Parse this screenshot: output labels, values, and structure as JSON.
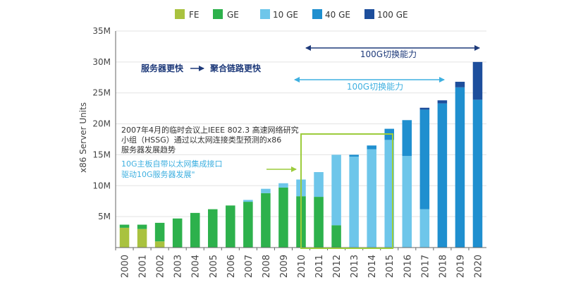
{
  "colors": {
    "FE": "#a9c23f",
    "GE": "#2db14c",
    "10 GE": "#6ec6ea",
    "40 GE": "#1f8fcf",
    "100 GE": "#1d4e9c",
    "axis": "#666666",
    "grid": "#e3e3e3",
    "annotation_navy": "#1e3a7a",
    "annotation_cyan": "#3fb0e0",
    "highlight_box": "#9ccc3c",
    "note_text": "#333333"
  },
  "chart_data": {
    "type": "bar",
    "stacked": true,
    "title": "",
    "xlabel": "",
    "ylabel": "x86 Server Units",
    "ylim": [
      0,
      35
    ],
    "yticks": [
      5,
      10,
      15,
      20,
      25,
      30,
      35
    ],
    "ytick_labels": [
      "5M",
      "10M",
      "15M",
      "20M",
      "25M",
      "30M",
      "35M"
    ],
    "grid": "horizontal",
    "legend_position": "top-center",
    "categories": [
      "2000",
      "2001",
      "2002",
      "2003",
      "2004",
      "2005",
      "2006",
      "2007",
      "2008",
      "2009",
      "2010",
      "2011",
      "2012",
      "2013",
      "2014",
      "2015",
      "2016",
      "2017",
      "2018",
      "2019",
      "2020"
    ],
    "series": [
      {
        "name": "FE",
        "values": [
          3.2,
          3.0,
          1.0,
          0,
          0,
          0,
          0,
          0,
          0,
          0,
          0,
          0,
          0,
          0,
          0,
          0,
          0,
          0,
          0,
          0,
          0
        ]
      },
      {
        "name": "GE",
        "values": [
          0.5,
          0.7,
          3.0,
          4.7,
          5.6,
          6.2,
          6.8,
          7.4,
          8.8,
          9.7,
          8.3,
          8.2,
          3.6,
          0,
          0,
          0,
          0,
          0,
          0,
          0,
          0
        ]
      },
      {
        "name": "10 GE",
        "values": [
          0,
          0,
          0,
          0,
          0,
          0,
          0,
          0.3,
          0.7,
          0.7,
          2.7,
          4.0,
          11.4,
          14.7,
          15.9,
          17.4,
          14.8,
          6.2,
          0,
          0,
          0
        ]
      },
      {
        "name": "40 GE",
        "values": [
          0,
          0,
          0,
          0,
          0,
          0,
          0,
          0,
          0,
          0,
          0,
          0,
          0,
          0.3,
          0.6,
          1.8,
          5.8,
          16.1,
          23.3,
          25.9,
          23.9
        ]
      },
      {
        "name": "100 GE",
        "values": [
          0,
          0,
          0,
          0,
          0,
          0,
          0,
          0,
          0,
          0,
          0,
          0,
          0,
          0,
          0,
          0,
          0,
          0.3,
          0.5,
          0.9,
          6.1
        ]
      }
    ],
    "annotations": {
      "top_range_label": "100G切换能力",
      "middle_range_label": "100G切换能力",
      "left_label_1": "服务器更快",
      "left_label_2": "聚合链路更快",
      "note_lines": [
        "2007年4月的临时会议上IEEE 802.3 高速网络研究",
        "小组（HSSG）通过以太网连接类型预测的x86",
        "服务器发展趋势"
      ],
      "cyan_note_lines": [
        "10G主板自带以太网集成接口",
        "驱动10G服务器发展\""
      ]
    }
  }
}
